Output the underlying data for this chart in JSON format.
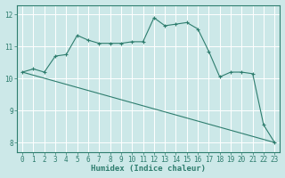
{
  "xlabel": "Humidex (Indice chaleur)",
  "background_color": "#cce8e8",
  "grid_color": "#ffffff",
  "line_color": "#2e7d6e",
  "xlim": [
    -0.5,
    23.5
  ],
  "ylim": [
    7.7,
    12.3
  ],
  "yticks": [
    8,
    9,
    10,
    11,
    12
  ],
  "xticks": [
    0,
    1,
    2,
    3,
    4,
    5,
    6,
    7,
    8,
    9,
    10,
    11,
    12,
    13,
    14,
    15,
    16,
    17,
    18,
    19,
    20,
    21,
    22,
    23
  ],
  "curve_x": [
    0,
    1,
    2,
    3,
    4,
    5,
    6,
    7,
    8,
    9,
    10,
    11,
    12,
    13,
    14,
    15,
    16,
    17,
    18,
    19,
    20,
    21,
    22,
    23
  ],
  "curve_y": [
    10.2,
    10.3,
    10.2,
    10.7,
    10.75,
    11.35,
    11.2,
    11.1,
    11.1,
    11.1,
    11.15,
    11.15,
    11.9,
    11.65,
    11.7,
    11.75,
    11.55,
    10.85,
    10.05,
    10.2,
    10.2,
    10.15,
    8.55,
    8.0
  ],
  "trend_x": [
    0,
    23
  ],
  "trend_y": [
    10.2,
    8.0
  ],
  "xlabel_fontsize": 6.5,
  "tick_fontsize": 5.5
}
